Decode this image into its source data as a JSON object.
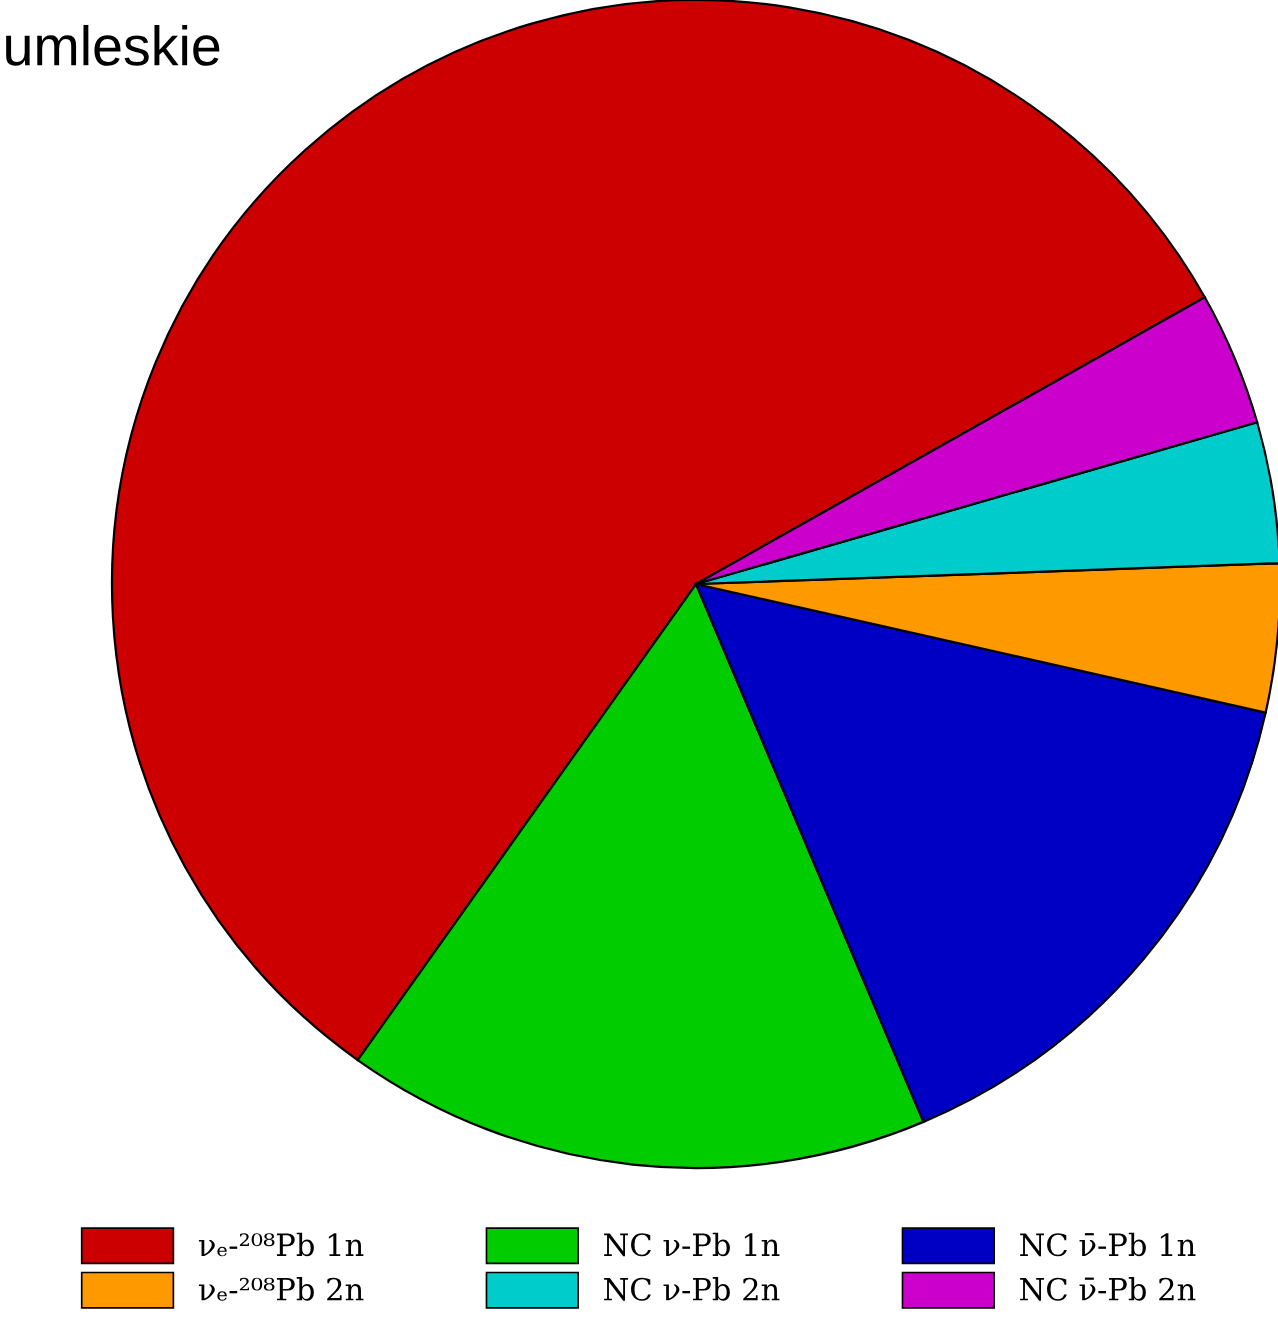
{
  "chart_data": {
    "type": "pie",
    "title": "umleskie",
    "categories": [
      "νₑ-²⁰⁸Pb 1n",
      "NC ν-Pb 1n",
      "NC ν̄-Pb 1n",
      "νₑ-²⁰⁸Pb 2n",
      "NC ν-Pb 2n",
      "NC ν̄-Pb 2n"
    ],
    "values": [
      57.0,
      16.2,
      15.1,
      4.1,
      3.9,
      3.7
    ],
    "colors": [
      "#cc0000",
      "#00cc00",
      "#0000c4",
      "#ff9900",
      "#00cccc",
      "#cc00cc"
    ],
    "legend": "bottom"
  }
}
